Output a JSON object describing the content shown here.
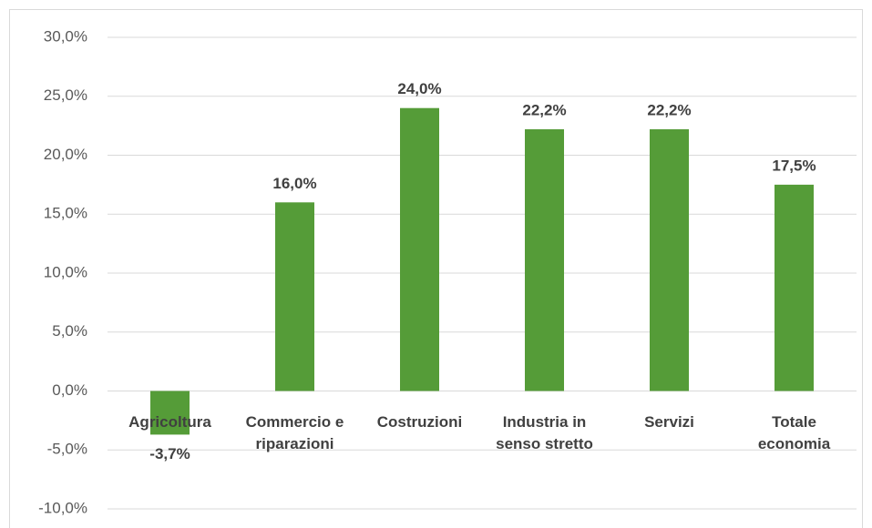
{
  "chart_data": {
    "type": "bar",
    "categories": [
      "Agricoltura",
      "Commercio e riparazioni",
      "Costruzioni",
      "Industria in senso stretto",
      "Servizi",
      "Totale economia"
    ],
    "values": [
      -3.7,
      16.0,
      24.0,
      22.2,
      22.2,
      17.5
    ],
    "value_labels": [
      "-3,7%",
      "16,0%",
      "24,0%",
      "22,2%",
      "22,2%",
      "17,5%"
    ],
    "color": "#559c38",
    "ylim": [
      -10,
      30
    ],
    "yticks": [
      {
        "value": -10,
        "label": "-10,0%"
      },
      {
        "value": -5,
        "label": "-5,0%"
      },
      {
        "value": 0,
        "label": "0,0%"
      },
      {
        "value": 5,
        "label": "5,0%"
      },
      {
        "value": 10,
        "label": "10,0%"
      },
      {
        "value": 15,
        "label": "15,0%"
      },
      {
        "value": 20,
        "label": "20,0%"
      },
      {
        "value": 25,
        "label": "25,0%"
      },
      {
        "value": 30,
        "label": "30,0%"
      }
    ],
    "grid": true
  }
}
